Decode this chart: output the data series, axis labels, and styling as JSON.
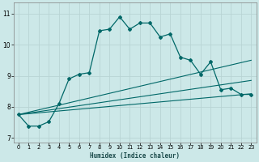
{
  "xlabel": "Humidex (Indice chaleur)",
  "background_color": "#cce8e8",
  "grid_color": "#b8d4d4",
  "line_color": "#006868",
  "xlim": [
    -0.5,
    23.5
  ],
  "ylim": [
    6.85,
    11.35
  ],
  "xticks": [
    0,
    1,
    2,
    3,
    4,
    5,
    6,
    7,
    8,
    9,
    10,
    11,
    12,
    13,
    14,
    15,
    16,
    17,
    18,
    19,
    20,
    21,
    22,
    23
  ],
  "yticks": [
    7,
    8,
    9,
    10,
    11
  ],
  "main_x": [
    0,
    1,
    2,
    3,
    4,
    5,
    6,
    7,
    8,
    9,
    10,
    11,
    12,
    13,
    14,
    15,
    16,
    17,
    18,
    19,
    20,
    21,
    22,
    23
  ],
  "main_y": [
    7.75,
    7.38,
    7.38,
    7.52,
    8.1,
    8.9,
    9.05,
    9.1,
    10.45,
    10.5,
    10.9,
    10.5,
    10.7,
    10.7,
    10.25,
    10.35,
    9.6,
    9.5,
    9.05,
    9.45,
    8.55,
    8.6,
    8.4,
    8.4
  ],
  "fan_start_x": 0,
  "fan_start_y": 7.75,
  "fan_lines": [
    {
      "end_x": 23,
      "end_y": 9.5
    },
    {
      "end_x": 23,
      "end_y": 8.85
    },
    {
      "end_x": 23,
      "end_y": 8.42
    }
  ]
}
